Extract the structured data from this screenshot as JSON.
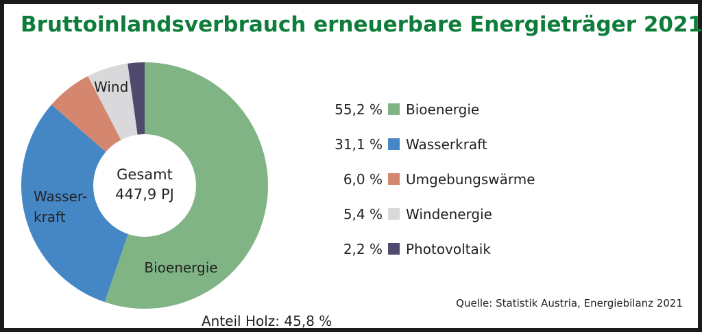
{
  "title": "Bruttoinlandsverbrauch erneuerbare Energieträger 2021",
  "center": {
    "line1": "Gesamt",
    "line2": "447,9 PJ"
  },
  "slice_labels": {
    "bioenergie": "Bioenergie",
    "wasser_line1": "Wasser-",
    "wasser_line2": "kraft",
    "wind": "Wind"
  },
  "source": "Quelle: Statistik Austria, Energiebilanz 2021",
  "wood_share": "Anteil Holz: 45,8 %",
  "chart_data": {
    "type": "pie",
    "title": "Bruttoinlandsverbrauch erneuerbare Energieträger 2021",
    "total_label": "Gesamt 447,9 PJ",
    "unit": "%",
    "slices": [
      {
        "key": "bioenergie",
        "label": "Bioenergie",
        "value": 55.2,
        "value_text": "55,2 %",
        "color": "#80b485"
      },
      {
        "key": "wasserkraft",
        "label": "Wasserkraft",
        "value": 31.1,
        "value_text": "31,1 %",
        "color": "#4587c5"
      },
      {
        "key": "umgebungswaerme",
        "label": "Umgebungswärme",
        "value": 6.0,
        "value_text": "6,0 %",
        "color": "#d4876e"
      },
      {
        "key": "windenergie",
        "label": "Windenergie",
        "value": 5.4,
        "value_text": "5,4 %",
        "color": "#d9d9db"
      },
      {
        "key": "photovoltaik",
        "label": "Photovoltaik",
        "value": 2.2,
        "value_text": "2,2 %",
        "color": "#52496f"
      }
    ],
    "legend_position": "right"
  }
}
